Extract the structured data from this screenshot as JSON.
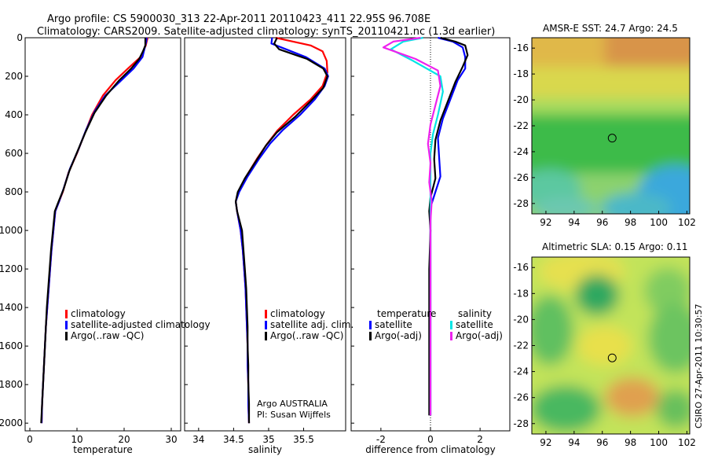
{
  "header": {
    "line1": "Argo profile: CS 5900030_313 22-Apr-2011 20110423_411 22.95S 96.708E",
    "line2": "Climatology: CARS2009. Satellite-adjusted climatology: synTS_20110421.nc (1.3d earlier)"
  },
  "side_stamp": "CSIRO 27-Apr-2011 10:30:57",
  "colors": {
    "climatology": "#ff0000",
    "satellite": "#0000ff",
    "argo": "#000000",
    "cyan": "#00e5e5",
    "magenta": "#ee22ee"
  },
  "chart_data": [
    {
      "id": "temperature",
      "type": "line",
      "xlabel": "temperature",
      "xlim": [
        -1,
        32
      ],
      "ylim": [
        2040,
        0
      ],
      "xticks": [
        0,
        10,
        20,
        30
      ],
      "yticks": [
        0,
        200,
        400,
        600,
        800,
        1000,
        1200,
        1400,
        1600,
        1800,
        2000
      ],
      "legend": [
        "climatology",
        "satellite-adjusted climatology",
        "Argo(..raw -QC)"
      ],
      "series": [
        {
          "name": "climatology",
          "color": "#ff0000",
          "dash": false,
          "points": [
            [
              25,
              0
            ],
            [
              24.6,
              40
            ],
            [
              23.5,
              100
            ],
            [
              20.8,
              160
            ],
            [
              18.2,
              220
            ],
            [
              15.5,
              300
            ],
            [
              13.2,
              400
            ],
            [
              11.6,
              500
            ],
            [
              10,
              600
            ],
            [
              8.2,
              700
            ],
            [
              7,
              800
            ],
            [
              6.2,
              850
            ],
            [
              5.4,
              900
            ],
            [
              5,
              1000
            ],
            [
              4.6,
              1100
            ],
            [
              4.3,
              1200
            ],
            [
              4,
              1300
            ],
            [
              3.7,
              1400
            ],
            [
              3.4,
              1500
            ],
            [
              3.2,
              1600
            ],
            [
              3,
              1700
            ],
            [
              2.8,
              1800
            ],
            [
              2.6,
              1900
            ],
            [
              2.5,
              2000
            ]
          ]
        },
        {
          "name": "satellite-adjusted climatology",
          "color": "#0000ff",
          "dash": false,
          "points": [
            [
              24.8,
              0
            ],
            [
              24.7,
              20
            ],
            [
              24.4,
              50
            ],
            [
              23.9,
              100
            ],
            [
              22,
              160
            ],
            [
              19,
              230
            ],
            [
              16,
              300
            ],
            [
              13.8,
              380
            ],
            [
              11.9,
              480
            ],
            [
              10.3,
              580
            ],
            [
              8.5,
              680
            ],
            [
              7.2,
              780
            ],
            [
              6.2,
              850
            ],
            [
              5.4,
              900
            ],
            [
              5,
              1000
            ],
            [
              4.6,
              1100
            ],
            [
              4.3,
              1200
            ],
            [
              4,
              1300
            ],
            [
              3.7,
              1400
            ],
            [
              3.4,
              1500
            ],
            [
              3.2,
              1600
            ],
            [
              3,
              1700
            ],
            [
              2.8,
              1800
            ],
            [
              2.6,
              1900
            ],
            [
              2.5,
              2000
            ]
          ]
        },
        {
          "name": "Argo(..raw -QC)",
          "color": "#000000",
          "dash": false,
          "points": [
            [
              24.5,
              0
            ],
            [
              24.5,
              40
            ],
            [
              24,
              70
            ],
            [
              23.2,
              110
            ],
            [
              21.5,
              160
            ],
            [
              19,
              220
            ],
            [
              16.2,
              300
            ],
            [
              13.7,
              390
            ],
            [
              11.8,
              490
            ],
            [
              10.1,
              590
            ],
            [
              8.4,
              690
            ],
            [
              7.1,
              790
            ],
            [
              6.1,
              850
            ],
            [
              5.3,
              900
            ],
            [
              4.9,
              1000
            ],
            [
              4.5,
              1100
            ],
            [
              4.2,
              1200
            ],
            [
              3.9,
              1300
            ],
            [
              3.6,
              1400
            ],
            [
              3.4,
              1500
            ],
            [
              3.2,
              1600
            ],
            [
              3,
              1700
            ],
            [
              2.8,
              1800
            ],
            [
              2.6,
              1900
            ],
            [
              2.4,
              2000
            ]
          ]
        }
      ]
    },
    {
      "id": "salinity",
      "type": "line",
      "xlabel": "salinity",
      "xlim": [
        33.8,
        36.1
      ],
      "ylim": [
        2040,
        0
      ],
      "xticks": [
        34,
        34.5,
        35,
        35.5
      ],
      "legend": [
        "climatology",
        "satellite adj. clim.",
        "Argo(..raw -QC)"
      ],
      "annotations": [
        "Argo AUSTRALIA",
        "PI: Susan Wijffels"
      ],
      "series": [
        {
          "name": "climatology",
          "color": "#ff0000",
          "dash": false,
          "points": [
            [
              35.1,
              0
            ],
            [
              35.35,
              20
            ],
            [
              35.6,
              40
            ],
            [
              35.77,
              70
            ],
            [
              35.83,
              120
            ],
            [
              35.84,
              180
            ],
            [
              35.77,
              250
            ],
            [
              35.6,
              320
            ],
            [
              35.35,
              400
            ],
            [
              35.13,
              480
            ],
            [
              34.98,
              550
            ],
            [
              34.83,
              630
            ],
            [
              34.68,
              720
            ],
            [
              34.57,
              800
            ],
            [
              34.53,
              850
            ],
            [
              34.55,
              900
            ],
            [
              34.6,
              1000
            ],
            [
              34.63,
              1100
            ],
            [
              34.65,
              1200
            ],
            [
              34.67,
              1300
            ],
            [
              34.68,
              1400
            ],
            [
              34.69,
              1500
            ],
            [
              34.7,
              1600
            ],
            [
              34.7,
              1700
            ],
            [
              34.71,
              1800
            ],
            [
              34.71,
              1900
            ],
            [
              34.72,
              2000
            ]
          ]
        },
        {
          "name": "satellite adj. clim.",
          "color": "#0000ff",
          "dash": false,
          "points": [
            [
              35.05,
              0
            ],
            [
              35.04,
              30
            ],
            [
              35.25,
              60
            ],
            [
              35.53,
              100
            ],
            [
              35.8,
              160
            ],
            [
              35.85,
              200
            ],
            [
              35.8,
              250
            ],
            [
              35.66,
              320
            ],
            [
              35.45,
              400
            ],
            [
              35.2,
              480
            ],
            [
              35.02,
              550
            ],
            [
              34.86,
              630
            ],
            [
              34.7,
              720
            ],
            [
              34.58,
              800
            ],
            [
              34.53,
              850
            ],
            [
              34.55,
              900
            ],
            [
              34.6,
              1000
            ],
            [
              34.63,
              1100
            ],
            [
              34.65,
              1200
            ],
            [
              34.67,
              1300
            ],
            [
              34.68,
              1400
            ],
            [
              34.69,
              1500
            ],
            [
              34.7,
              1600
            ],
            [
              34.7,
              1700
            ],
            [
              34.71,
              1800
            ],
            [
              34.71,
              1900
            ],
            [
              34.72,
              2000
            ]
          ]
        },
        {
          "name": "Argo(..raw -QC)",
          "color": "#000000",
          "dash": false,
          "points": [
            [
              35.12,
              0
            ],
            [
              35.08,
              30
            ],
            [
              35.15,
              60
            ],
            [
              35.55,
              110
            ],
            [
              35.78,
              160
            ],
            [
              35.84,
              200
            ],
            [
              35.78,
              260
            ],
            [
              35.6,
              330
            ],
            [
              35.38,
              410
            ],
            [
              35.12,
              490
            ],
            [
              34.96,
              560
            ],
            [
              34.82,
              640
            ],
            [
              34.66,
              730
            ],
            [
              34.56,
              800
            ],
            [
              34.53,
              850
            ],
            [
              34.55,
              900
            ],
            [
              34.62,
              1000
            ],
            [
              34.64,
              1100
            ],
            [
              34.66,
              1200
            ],
            [
              34.68,
              1300
            ],
            [
              34.69,
              1400
            ],
            [
              34.7,
              1500
            ],
            [
              34.7,
              1600
            ],
            [
              34.71,
              1700
            ],
            [
              34.71,
              1800
            ],
            [
              34.72,
              1900
            ],
            [
              34.72,
              2000
            ]
          ]
        }
      ]
    },
    {
      "id": "difference",
      "type": "line",
      "xlabel": "difference from climatology",
      "xlim": [
        -3.2,
        3.2
      ],
      "ylim": [
        2040,
        0
      ],
      "xticks": [
        -2,
        0,
        2
      ],
      "legend_titles": [
        "temperature",
        "salinity"
      ],
      "legend": [
        "satellite",
        "Argo(-adj)",
        "satellite",
        "Argo(-adj)"
      ],
      "series": [
        {
          "name": "satellite",
          "color": "#0000ff",
          "dash": false,
          "points": [
            [
              0.3,
              0
            ],
            [
              0.9,
              20
            ],
            [
              1.3,
              50
            ],
            [
              1.4,
              100
            ],
            [
              1.4,
              160
            ],
            [
              1.1,
              220
            ],
            [
              0.8,
              320
            ],
            [
              0.5,
              420
            ],
            [
              0.3,
              520
            ],
            [
              0.35,
              620
            ],
            [
              0.4,
              720
            ],
            [
              0.15,
              820
            ],
            [
              0,
              880
            ],
            [
              0,
              1000
            ],
            [
              0,
              1400
            ],
            [
              0,
              1800
            ],
            [
              0,
              1960
            ]
          ]
        },
        {
          "name": "Argo(-adj)",
          "color": "#000000",
          "dash": false,
          "points": [
            [
              0.4,
              0
            ],
            [
              1,
              20
            ],
            [
              1.4,
              40
            ],
            [
              1.5,
              90
            ],
            [
              1.3,
              150
            ],
            [
              1,
              230
            ],
            [
              0.7,
              330
            ],
            [
              0.4,
              430
            ],
            [
              0.2,
              530
            ],
            [
              0.15,
              630
            ],
            [
              0.2,
              730
            ],
            [
              0,
              830
            ],
            [
              -0.05,
              900
            ],
            [
              0,
              1000
            ],
            [
              -0.05,
              1200
            ],
            [
              -0.05,
              1600
            ],
            [
              -0.05,
              1960
            ]
          ]
        },
        {
          "name": "satellite",
          "color": "#00e5e5",
          "dash": false,
          "points": [
            [
              -0.3,
              0
            ],
            [
              -1.1,
              20
            ],
            [
              -1.6,
              60
            ],
            [
              -0.7,
              120
            ],
            [
              0.4,
              200
            ],
            [
              0.5,
              280
            ],
            [
              0.3,
              400
            ],
            [
              0.1,
              500
            ],
            [
              0,
              600
            ],
            [
              0,
              800
            ],
            [
              0,
              1000
            ],
            [
              0,
              1400
            ],
            [
              0,
              1800
            ],
            [
              0,
              1960
            ]
          ]
        },
        {
          "name": "Argo(-adj)",
          "color": "#ee22ee",
          "dash": false,
          "points": [
            [
              -0.4,
              0
            ],
            [
              -1.5,
              20
            ],
            [
              -1.9,
              50
            ],
            [
              -0.6,
              110
            ],
            [
              0.3,
              170
            ],
            [
              0.4,
              250
            ],
            [
              0.2,
              350
            ],
            [
              0,
              450
            ],
            [
              -0.1,
              550
            ],
            [
              0,
              650
            ],
            [
              -0.05,
              750
            ],
            [
              0.05,
              850
            ],
            [
              0,
              950
            ],
            [
              0,
              1200
            ],
            [
              0,
              1600
            ],
            [
              0,
              1960
            ]
          ]
        }
      ]
    },
    {
      "id": "sst_map",
      "type": "heatmap",
      "title": "AMSR-E SST: 24.7 Argo: 24.5",
      "xlim": [
        91,
        102.2
      ],
      "ylim": [
        -28.8,
        -15.2
      ],
      "xticks": [
        92,
        94,
        96,
        98,
        100,
        102
      ],
      "yticks": [
        -16,
        -18,
        -20,
        -22,
        -24,
        -26,
        -28
      ],
      "marker": [
        96.7,
        -22.95
      ]
    },
    {
      "id": "sla_map",
      "type": "heatmap",
      "title": "Altimetric SLA: 0.15 Argo: 0.11",
      "xlim": [
        91,
        102.2
      ],
      "ylim": [
        -28.8,
        -15.2
      ],
      "xticks": [
        92,
        94,
        96,
        98,
        100,
        102
      ],
      "yticks": [
        -16,
        -18,
        -20,
        -22,
        -24,
        -26,
        -28
      ],
      "marker": [
        96.7,
        -22.95
      ]
    }
  ]
}
